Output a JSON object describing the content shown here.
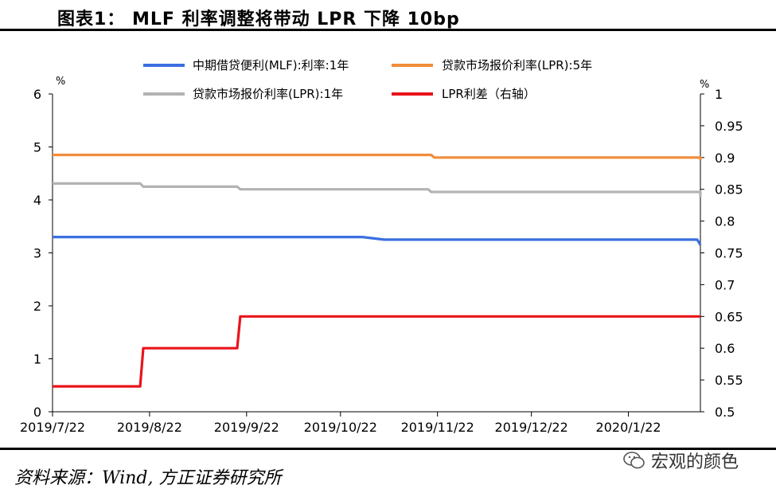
{
  "header": {
    "title": "图表1：  MLF 利率调整将带动 LPR 下降 10bp"
  },
  "footer": {
    "source": "资料来源：Wind, 方正证券研究所",
    "watermark": "宏观的颜色"
  },
  "chart_data": {
    "type": "line",
    "x_ticks": [
      "2019/7/22",
      "2019/8/22",
      "2019/9/22",
      "2019/10/22",
      "2019/11/22",
      "2019/12/22",
      "2020/1/22"
    ],
    "x_range": [
      "2019-07-22",
      "2020-02-14"
    ],
    "y_left": {
      "unit": "%",
      "min": 0,
      "max": 6,
      "ticks": [
        "0",
        "1",
        "2",
        "3",
        "4",
        "5",
        "6"
      ]
    },
    "y_right": {
      "unit": "%",
      "min": 0.5,
      "max": 1,
      "ticks": [
        "0.5",
        "0.55",
        "0.6",
        "0.65",
        "0.7",
        "0.75",
        "0.8",
        "0.85",
        "0.9",
        "0.95",
        "1"
      ]
    },
    "legend": {
      "placement": "top"
    },
    "series": [
      {
        "name": "中期借贷便利(MLF):利率:1年",
        "axis": "left",
        "color": "#3a6fe0",
        "points": [
          [
            "2019-07-22",
            3.3
          ],
          [
            "2019-10-29",
            3.3
          ],
          [
            "2019-11-05",
            3.25
          ],
          [
            "2020-02-13",
            3.25
          ],
          [
            "2020-02-14",
            3.15
          ]
        ]
      },
      {
        "name": "贷款市场报价利率(LPR):5年",
        "axis": "left",
        "color": "#f28c3a",
        "points": [
          [
            "2019-07-22",
            4.85
          ],
          [
            "2019-11-20",
            4.85
          ],
          [
            "2019-11-21",
            4.8
          ],
          [
            "2020-02-14",
            4.8
          ],
          [
            "2020-02-14",
            4.75
          ]
        ]
      },
      {
        "name": "贷款市场报价利率(LPR):1年",
        "axis": "left",
        "color": "#b3b3b3",
        "points": [
          [
            "2019-07-22",
            4.31
          ],
          [
            "2019-08-19",
            4.31
          ],
          [
            "2019-08-20",
            4.25
          ],
          [
            "2019-09-19",
            4.25
          ],
          [
            "2019-09-20",
            4.2
          ],
          [
            "2019-11-19",
            4.2
          ],
          [
            "2019-11-20",
            4.15
          ],
          [
            "2020-02-14",
            4.15
          ],
          [
            "2020-02-14",
            4.05
          ]
        ]
      },
      {
        "name": "LPR利差（右轴）",
        "axis": "right",
        "color": "#e8141a",
        "points": [
          [
            "2019-07-22",
            0.54
          ],
          [
            "2019-08-19",
            0.54
          ],
          [
            "2019-08-20",
            0.6
          ],
          [
            "2019-09-19",
            0.6
          ],
          [
            "2019-09-20",
            0.65
          ],
          [
            "2020-02-14",
            0.65
          ]
        ]
      }
    ]
  }
}
